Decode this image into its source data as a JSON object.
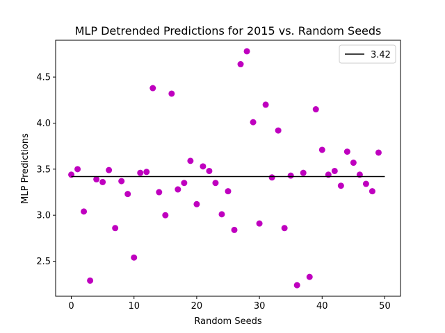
{
  "chart_data": {
    "type": "scatter",
    "title": "MLP Detrended Predictions for 2015 vs. Random Seeds",
    "xlabel": "Random Seeds",
    "ylabel": "MLP Predictions",
    "xlim": [
      -2.5,
      52.5
    ],
    "ylim": [
      2.12,
      4.9
    ],
    "xticks": [
      0,
      10,
      20,
      30,
      40,
      50
    ],
    "yticks": [
      2.5,
      3.0,
      3.5,
      4.0,
      4.5
    ],
    "xtick_labels": [
      "0",
      "10",
      "20",
      "30",
      "40",
      "50"
    ],
    "ytick_labels": [
      "2.5",
      "3.0",
      "3.5",
      "4.0",
      "4.5"
    ],
    "grid": false,
    "legend_position": "upper right",
    "marker_color": "#bf00bf",
    "line_color": "#000000",
    "series": [
      {
        "kind": "points",
        "x": [
          0,
          1,
          2,
          3,
          4,
          5,
          6,
          7,
          8,
          9,
          10,
          11,
          12,
          13,
          14,
          15,
          16,
          17,
          18,
          19,
          20,
          21,
          22,
          23,
          24,
          25,
          26,
          27,
          28,
          29,
          30,
          31,
          32,
          33,
          34,
          35,
          36,
          37,
          38,
          39,
          40,
          41,
          42,
          43,
          44,
          45,
          46,
          47,
          48,
          49
        ],
        "y": [
          3.44,
          3.5,
          3.04,
          2.29,
          3.39,
          3.36,
          3.49,
          2.86,
          3.37,
          3.23,
          2.54,
          3.46,
          3.47,
          4.38,
          3.25,
          3.0,
          4.32,
          3.28,
          3.35,
          3.59,
          3.12,
          3.53,
          3.48,
          3.35,
          3.01,
          3.26,
          2.84,
          4.64,
          4.78,
          4.01,
          2.91,
          4.2,
          3.41,
          3.92,
          2.86,
          3.43,
          2.24,
          3.46,
          2.33,
          4.15,
          3.71,
          3.44,
          3.48,
          3.32,
          3.69,
          3.57,
          3.44,
          3.34,
          3.26,
          3.68
        ]
      },
      {
        "kind": "hline",
        "name": "3.42",
        "y": 3.42,
        "x_range": [
          0,
          50
        ]
      }
    ]
  }
}
